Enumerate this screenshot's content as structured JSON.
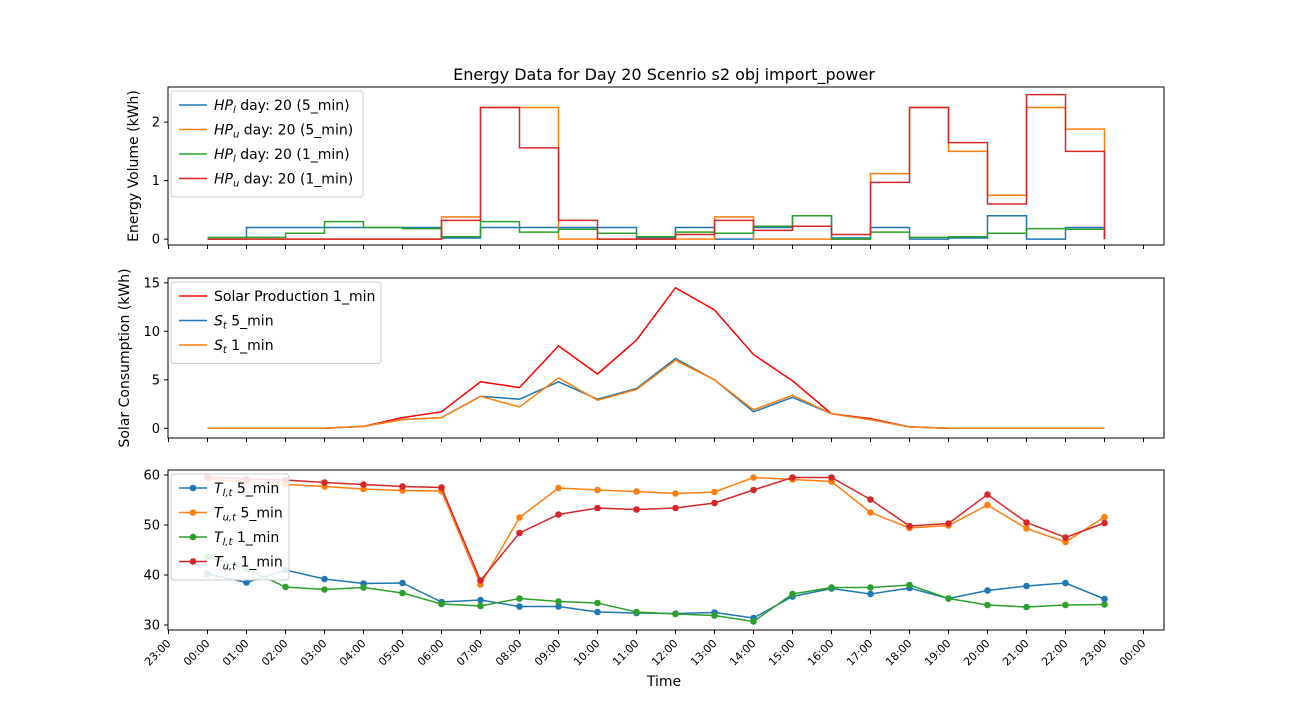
{
  "figure": {
    "title": "Energy Data for Day 20 Scenrio s2 obj import_power",
    "xlabel": "Time",
    "x_ticks": [
      "23:00",
      "00:00",
      "01:00",
      "02:00",
      "03:00",
      "04:00",
      "05:00",
      "06:00",
      "07:00",
      "08:00",
      "09:00",
      "10:00",
      "11:00",
      "12:00",
      "13:00",
      "14:00",
      "15:00",
      "16:00",
      "17:00",
      "18:00",
      "19:00",
      "20:00",
      "21:00",
      "22:00",
      "23:00",
      "00:00"
    ],
    "colors": {
      "blue": "#1f77b4",
      "orange": "#ff7f0e",
      "green": "#2ca02c",
      "red": "#d62728",
      "bright_red": "#ff0000"
    }
  },
  "chart_data": [
    {
      "type": "line",
      "step": "post",
      "ylabel": "Energy Volume (kWh)",
      "ylim": [
        -0.1,
        2.6
      ],
      "y_ticks": [
        "0",
        "1",
        "2"
      ],
      "x": [
        "00:00",
        "01:00",
        "02:00",
        "03:00",
        "04:00",
        "05:00",
        "06:00",
        "07:00",
        "08:00",
        "09:00",
        "10:00",
        "11:00",
        "12:00",
        "13:00",
        "14:00",
        "15:00",
        "16:00",
        "17:00",
        "18:00",
        "19:00",
        "20:00",
        "21:00",
        "22:00",
        "23:00"
      ],
      "legend": "upper left",
      "series": [
        {
          "name": "HP_l day: 20 (5_min)",
          "legend_main": "HP",
          "legend_sub": "l",
          "legend_rest": " day: 20 (5_min)",
          "color": "#1f77b4",
          "values": [
            0.0,
            0.2,
            0.2,
            0.2,
            0.2,
            0.2,
            0.02,
            0.2,
            0.2,
            0.2,
            0.2,
            0.02,
            0.2,
            0.0,
            0.2,
            0.4,
            0.02,
            0.2,
            0.0,
            0.02,
            0.4,
            0.0,
            0.2,
            0.2
          ]
        },
        {
          "name": "HP_u day: 20 (5_min)",
          "legend_main": "HP",
          "legend_sub": "u",
          "legend_rest": " day: 20 (5_min)",
          "color": "#ff7f0e",
          "values": [
            0.0,
            0.0,
            0.0,
            0.0,
            0.0,
            0.0,
            0.38,
            2.25,
            2.25,
            0.0,
            0.0,
            0.0,
            0.0,
            0.38,
            0.0,
            0.0,
            0.0,
            1.12,
            2.25,
            1.5,
            0.75,
            2.25,
            1.88,
            1.88
          ]
        },
        {
          "name": "HP_l day: 20 (1_min)",
          "legend_main": "HP",
          "legend_sub": "l",
          "legend_rest": " day: 20 (1_min)",
          "color": "#2ca02c",
          "values": [
            0.03,
            0.03,
            0.1,
            0.3,
            0.2,
            0.18,
            0.04,
            0.3,
            0.12,
            0.17,
            0.1,
            0.04,
            0.12,
            0.1,
            0.22,
            0.4,
            0.0,
            0.12,
            0.03,
            0.04,
            0.1,
            0.18,
            0.17,
            0.17
          ]
        },
        {
          "name": "HP_u day: 20 (1_min)",
          "legend_main": "HP",
          "legend_sub": "u",
          "legend_rest": " day: 20 (1_min)",
          "color": "#d62728",
          "values": [
            0.0,
            0.0,
            0.0,
            0.0,
            0.0,
            0.0,
            0.32,
            2.25,
            1.56,
            0.32,
            0.0,
            0.0,
            0.08,
            0.32,
            0.15,
            0.22,
            0.08,
            0.97,
            2.25,
            1.65,
            0.6,
            2.47,
            1.5,
            1.5
          ]
        }
      ]
    },
    {
      "type": "line",
      "ylabel": "Solar Consumption (kWh)",
      "ylim": [
        -1,
        15.5
      ],
      "y_ticks": [
        "0",
        "5",
        "10",
        "15"
      ],
      "x": [
        "00:00",
        "01:00",
        "02:00",
        "03:00",
        "04:00",
        "05:00",
        "06:00",
        "07:00",
        "08:00",
        "09:00",
        "10:00",
        "11:00",
        "12:00",
        "13:00",
        "14:00",
        "15:00",
        "16:00",
        "17:00",
        "18:00",
        "19:00",
        "20:00",
        "21:00",
        "22:00",
        "23:00"
      ],
      "legend": "upper left",
      "series": [
        {
          "name": "Solar Production 1_min",
          "legend_main": "Solar Production 1_min",
          "legend_sub": "",
          "legend_rest": "",
          "color": "#ff0000",
          "values": [
            0,
            0,
            0,
            0,
            0.2,
            1.1,
            1.7,
            4.8,
            4.2,
            8.5,
            5.6,
            9.1,
            14.5,
            12.2,
            7.6,
            4.9,
            1.5,
            1.0,
            0.15,
            0,
            0,
            0,
            0,
            0
          ]
        },
        {
          "name": "S_t 5_min",
          "legend_main": "S",
          "legend_sub": "t",
          "legend_rest": " 5_min",
          "color": "#1f77b4",
          "values": [
            0,
            0,
            0,
            0,
            0.2,
            0.9,
            1.1,
            3.3,
            3.0,
            4.8,
            3.0,
            4.1,
            7.2,
            5.0,
            1.7,
            3.2,
            1.5,
            0.9,
            0.15,
            0,
            0,
            0,
            0,
            0
          ]
        },
        {
          "name": "S_t 1_min",
          "legend_main": "S",
          "legend_sub": "t",
          "legend_rest": " 1_min",
          "color": "#ff7f0e",
          "values": [
            0,
            0,
            0,
            0,
            0.2,
            0.9,
            1.1,
            3.3,
            2.2,
            5.2,
            2.9,
            4.0,
            7.0,
            5.0,
            1.9,
            3.4,
            1.5,
            0.9,
            0.15,
            0,
            0,
            0,
            0,
            0
          ]
        }
      ]
    },
    {
      "type": "line",
      "markers": true,
      "ylim": [
        29,
        61
      ],
      "y_ticks": [
        "30",
        "40",
        "50",
        "60"
      ],
      "x": [
        "00:00",
        "01:00",
        "02:00",
        "03:00",
        "04:00",
        "05:00",
        "06:00",
        "07:00",
        "08:00",
        "09:00",
        "10:00",
        "11:00",
        "12:00",
        "13:00",
        "14:00",
        "15:00",
        "16:00",
        "17:00",
        "18:00",
        "19:00",
        "20:00",
        "21:00",
        "22:00",
        "23:00"
      ],
      "legend": "upper left",
      "series": [
        {
          "name": "T_l,t 5_min",
          "legend_main": "T",
          "legend_sub": "l,t",
          "legend_rest": " 5_min",
          "color": "#1f77b4",
          "values": [
            40.2,
            38.5,
            41.0,
            39.2,
            38.3,
            38.4,
            34.6,
            35.0,
            33.7,
            33.7,
            32.6,
            32.4,
            32.3,
            32.5,
            31.4,
            35.7,
            37.3,
            36.2,
            37.4,
            35.3,
            36.9,
            37.8,
            38.4,
            35.2
          ]
        },
        {
          "name": "T_u,t 5_min",
          "legend_main": "T",
          "legend_sub": "u,t",
          "legend_rest": " 5_min",
          "color": "#ff7f0e",
          "values": [
            59.2,
            58.6,
            58.1,
            57.7,
            57.2,
            56.9,
            56.8,
            38.1,
            51.5,
            57.4,
            57.0,
            56.7,
            56.3,
            56.6,
            59.5,
            59.1,
            58.7,
            52.5,
            49.4,
            49.9,
            54.0,
            49.3,
            46.6,
            51.6
          ]
        },
        {
          "name": "T_l,t 1_min",
          "legend_main": "T",
          "legend_sub": "l,t",
          "legend_rest": " 1_min",
          "color": "#2ca02c",
          "values": [
            43.7,
            41.2,
            37.6,
            37.1,
            37.5,
            36.4,
            34.2,
            33.8,
            35.3,
            34.7,
            34.4,
            32.6,
            32.2,
            31.9,
            30.7,
            36.2,
            37.5,
            37.5,
            38.0,
            35.3,
            34.0,
            33.6,
            34.0,
            34.1
          ]
        },
        {
          "name": "T_u,t 1_min",
          "legend_main": "T",
          "legend_sub": "u,t",
          "legend_rest": " 1_min",
          "color": "#d62728",
          "values": [
            59.6,
            59.2,
            59.0,
            58.5,
            58.1,
            57.7,
            57.5,
            38.9,
            48.4,
            52.1,
            53.4,
            53.1,
            53.4,
            54.4,
            57.0,
            59.5,
            59.5,
            55.1,
            49.8,
            50.3,
            56.1,
            50.5,
            47.5,
            50.4
          ]
        }
      ]
    }
  ]
}
